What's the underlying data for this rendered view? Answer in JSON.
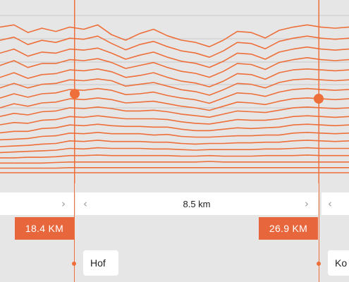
{
  "colors": {
    "accent": "#ee6f3a",
    "badge": "#e8663c",
    "background": "#e6e6e6",
    "panel": "#ffffff"
  },
  "chart_data": {
    "type": "line",
    "title": "",
    "xlabel": "",
    "ylabel": "",
    "x": [
      0,
      4,
      8,
      12,
      16,
      20,
      24,
      28,
      32,
      36,
      40,
      44,
      48,
      52,
      56,
      60,
      64,
      68,
      72,
      76,
      80,
      84,
      88,
      92,
      96,
      100
    ],
    "series": [
      {
        "values": [
          62,
          64,
          57,
          61,
          58,
          62,
          60,
          64,
          55,
          50,
          56,
          60,
          54,
          50,
          48,
          44,
          50,
          58,
          57,
          52,
          59,
          62,
          64,
          62,
          61,
          62
        ]
      },
      {
        "values": [
          56,
          59,
          52,
          56,
          54,
          58,
          57,
          60,
          53,
          47,
          52,
          55,
          50,
          46,
          44,
          40,
          46,
          54,
          53,
          48,
          55,
          58,
          60,
          58,
          57,
          58
        ]
      },
      {
        "values": [
          50,
          54,
          47,
          51,
          50,
          54,
          53,
          55,
          50,
          44,
          48,
          51,
          46,
          42,
          40,
          36,
          42,
          50,
          49,
          44,
          51,
          54,
          56,
          54,
          53,
          54
        ]
      },
      {
        "values": [
          44,
          49,
          42,
          46,
          46,
          50,
          49,
          51,
          47,
          41,
          44,
          47,
          42,
          38,
          36,
          32,
          38,
          46,
          45,
          40,
          47,
          50,
          52,
          50,
          49,
          50
        ]
      },
      {
        "values": [
          38,
          43,
          37,
          41,
          42,
          46,
          45,
          47,
          44,
          38,
          40,
          43,
          38,
          34,
          32,
          28,
          34,
          42,
          41,
          36,
          43,
          46,
          47,
          46,
          45,
          46
        ]
      },
      {
        "values": [
          33,
          38,
          33,
          37,
          38,
          42,
          41,
          43,
          41,
          35,
          37,
          39,
          35,
          31,
          29,
          25,
          31,
          38,
          37,
          33,
          39,
          42,
          43,
          42,
          41,
          42
        ]
      },
      {
        "values": [
          28,
          33,
          29,
          33,
          34,
          38,
          37,
          39,
          37,
          32,
          33,
          35,
          31,
          28,
          26,
          22,
          28,
          34,
          33,
          30,
          35,
          38,
          39,
          38,
          37,
          38
        ]
      },
      {
        "values": [
          23,
          28,
          25,
          29,
          30,
          34,
          33,
          35,
          33,
          29,
          30,
          31,
          28,
          25,
          23,
          20,
          25,
          30,
          29,
          27,
          31,
          34,
          35,
          34,
          33,
          34
        ]
      },
      {
        "values": [
          19,
          23,
          21,
          25,
          26,
          30,
          29,
          31,
          29,
          26,
          26,
          27,
          25,
          22,
          20,
          18,
          22,
          26,
          25,
          24,
          27,
          30,
          31,
          30,
          29,
          30
        ]
      },
      {
        "values": [
          15,
          18,
          17,
          21,
          22,
          26,
          25,
          27,
          25,
          23,
          23,
          23,
          22,
          19,
          17,
          16,
          19,
          22,
          21,
          21,
          23,
          26,
          27,
          26,
          25,
          26
        ]
      },
      {
        "values": [
          11,
          13,
          13,
          17,
          18,
          22,
          21,
          23,
          21,
          20,
          20,
          19,
          19,
          16,
          14,
          14,
          16,
          18,
          17,
          18,
          19,
          22,
          23,
          22,
          21,
          22
        ]
      },
      {
        "values": [
          8,
          9,
          10,
          13,
          14,
          18,
          17,
          19,
          17,
          17,
          17,
          15,
          16,
          13,
          12,
          12,
          13,
          14,
          14,
          15,
          15,
          18,
          19,
          18,
          17,
          18
        ]
      },
      {
        "values": [
          5,
          6,
          7,
          9,
          10,
          14,
          13,
          15,
          13,
          13,
          13,
          12,
          12,
          10,
          9,
          10,
          10,
          11,
          11,
          12,
          12,
          14,
          15,
          14,
          13,
          14
        ]
      },
      {
        "values": [
          3,
          4,
          5,
          6,
          7,
          10,
          9,
          11,
          10,
          10,
          10,
          9,
          9,
          8,
          7,
          8,
          8,
          8,
          8,
          9,
          9,
          10,
          11,
          10,
          10,
          10
        ]
      },
      {
        "values": [
          2,
          2,
          3,
          3,
          4,
          6,
          6,
          7,
          6,
          6,
          6,
          6,
          6,
          5,
          5,
          6,
          5,
          5,
          5,
          6,
          6,
          6,
          7,
          6,
          6,
          6
        ]
      },
      {
        "values": [
          1,
          1,
          1,
          1,
          2,
          3,
          3,
          3,
          3,
          3,
          3,
          3,
          3,
          3,
          3,
          4,
          3,
          3,
          3,
          3,
          3,
          3,
          3,
          3,
          3,
          3
        ]
      },
      {
        "values": [
          0,
          0,
          0,
          0,
          0,
          1,
          1,
          1,
          1,
          1,
          1,
          1,
          1,
          1,
          1,
          1,
          1,
          1,
          1,
          1,
          1,
          1,
          1,
          1,
          1,
          1
        ]
      },
      {
        "values": [
          0,
          0,
          0,
          0,
          0,
          0,
          0,
          0,
          0,
          0,
          0,
          0,
          0,
          0,
          0,
          0,
          0,
          0,
          0,
          0,
          0,
          0,
          0,
          0,
          0,
          0
        ]
      }
    ],
    "grid": true
  },
  "segments": {
    "prev_chevron": "›",
    "main_left_chevron": "‹",
    "main_label": "8.5 km",
    "main_right_chevron": "›",
    "next_chevron": "‹"
  },
  "markers": {
    "left_km": "18.4 KM",
    "right_km": "26.9 KM"
  },
  "places": {
    "left": "Hof",
    "right": "Ko"
  }
}
